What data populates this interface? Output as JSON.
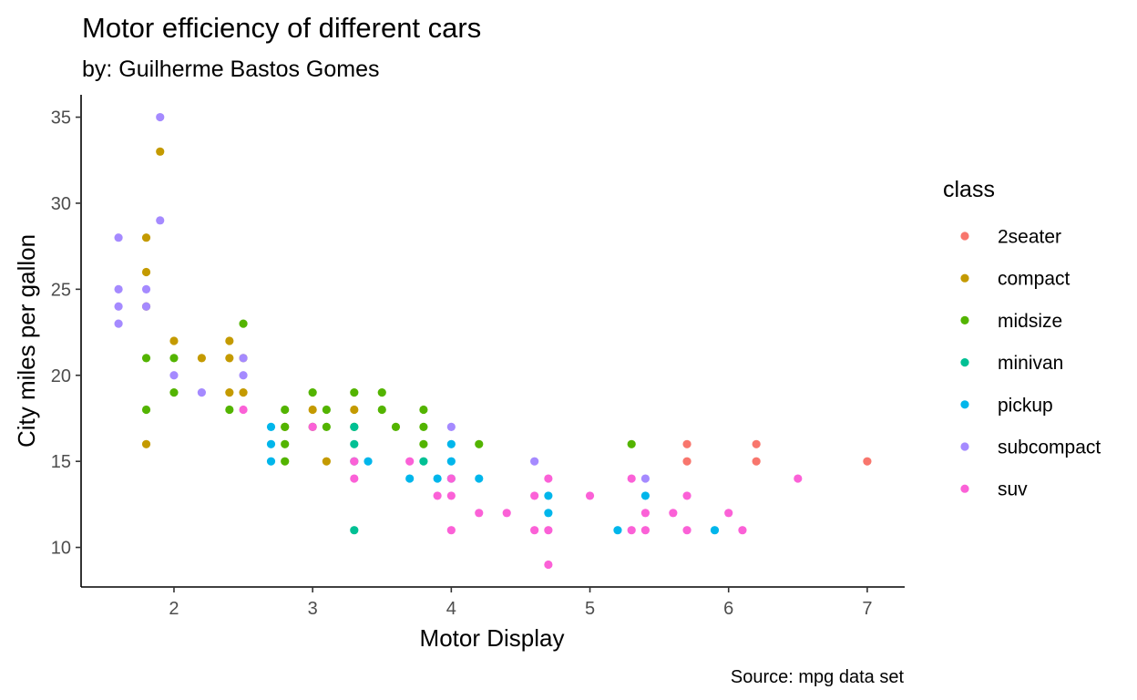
{
  "chart_data": {
    "type": "scatter",
    "title": "Motor efficiency of different cars",
    "subtitle": "by: Guilherme Bastos Gomes",
    "caption": "Source: mpg data set",
    "xlabel": "Motor Display",
    "ylabel": "City miles per gallon",
    "xlim": [
      1.33,
      7.27
    ],
    "ylim": [
      7.7,
      36.3
    ],
    "xticks": [
      2,
      3,
      4,
      5,
      6,
      7
    ],
    "yticks": [
      10,
      15,
      20,
      25,
      30,
      35
    ],
    "grid": false,
    "legend": {
      "title": "class",
      "position": "right"
    },
    "series": [
      {
        "name": "2seater",
        "color": "#F8766D",
        "points": [
          [
            5.7,
            16
          ],
          [
            5.7,
            15
          ],
          [
            6.2,
            16
          ],
          [
            6.2,
            15
          ],
          [
            7.0,
            15
          ]
        ]
      },
      {
        "name": "compact",
        "color": "#C49A00",
        "points": [
          [
            1.8,
            28
          ],
          [
            1.8,
            26
          ],
          [
            1.8,
            24
          ],
          [
            1.8,
            16
          ],
          [
            1.9,
            33
          ],
          [
            2.0,
            22
          ],
          [
            2.2,
            21
          ],
          [
            2.4,
            22
          ],
          [
            2.4,
            21
          ],
          [
            2.4,
            19
          ],
          [
            2.5,
            21
          ],
          [
            2.5,
            19
          ],
          [
            2.8,
            17
          ],
          [
            3.0,
            18
          ],
          [
            3.1,
            15
          ],
          [
            3.3,
            18
          ]
        ]
      },
      {
        "name": "midsize",
        "color": "#53B400",
        "points": [
          [
            1.8,
            21
          ],
          [
            1.8,
            18
          ],
          [
            2.0,
            21
          ],
          [
            2.0,
            19
          ],
          [
            2.4,
            18
          ],
          [
            2.5,
            23
          ],
          [
            2.8,
            18
          ],
          [
            2.8,
            17
          ],
          [
            2.8,
            16
          ],
          [
            2.8,
            15
          ],
          [
            3.0,
            19
          ],
          [
            3.0,
            17
          ],
          [
            3.1,
            18
          ],
          [
            3.1,
            17
          ],
          [
            3.3,
            19
          ],
          [
            3.3,
            17
          ],
          [
            3.5,
            19
          ],
          [
            3.5,
            18
          ],
          [
            3.6,
            17
          ],
          [
            3.8,
            18
          ],
          [
            3.8,
            17
          ],
          [
            3.8,
            16
          ],
          [
            4.2,
            16
          ],
          [
            5.3,
            16
          ]
        ]
      },
      {
        "name": "minivan",
        "color": "#00C094",
        "points": [
          [
            3.3,
            17
          ],
          [
            3.3,
            16
          ],
          [
            3.3,
            15
          ],
          [
            3.3,
            11
          ],
          [
            3.8,
            15
          ]
        ]
      },
      {
        "name": "pickup",
        "color": "#00B6EB",
        "points": [
          [
            2.7,
            17
          ],
          [
            2.7,
            16
          ],
          [
            2.7,
            15
          ],
          [
            3.4,
            15
          ],
          [
            3.7,
            14
          ],
          [
            3.9,
            14
          ],
          [
            4.0,
            16
          ],
          [
            4.0,
            15
          ],
          [
            4.0,
            14
          ],
          [
            4.2,
            14
          ],
          [
            4.7,
            13
          ],
          [
            4.7,
            12
          ],
          [
            5.2,
            11
          ],
          [
            5.4,
            13
          ],
          [
            5.9,
            11
          ]
        ]
      },
      {
        "name": "subcompact",
        "color": "#A58AFF",
        "points": [
          [
            1.6,
            28
          ],
          [
            1.6,
            25
          ],
          [
            1.6,
            24
          ],
          [
            1.6,
            23
          ],
          [
            1.8,
            25
          ],
          [
            1.8,
            24
          ],
          [
            1.9,
            35
          ],
          [
            1.9,
            29
          ],
          [
            2.0,
            20
          ],
          [
            2.2,
            19
          ],
          [
            2.5,
            21
          ],
          [
            2.5,
            20
          ],
          [
            4.0,
            17
          ],
          [
            4.6,
            15
          ],
          [
            5.4,
            14
          ]
        ]
      },
      {
        "name": "suv",
        "color": "#FB61D7",
        "points": [
          [
            2.5,
            18
          ],
          [
            3.0,
            17
          ],
          [
            3.3,
            15
          ],
          [
            3.3,
            14
          ],
          [
            3.7,
            15
          ],
          [
            3.9,
            13
          ],
          [
            4.0,
            14
          ],
          [
            4.0,
            13
          ],
          [
            4.0,
            11
          ],
          [
            4.2,
            12
          ],
          [
            4.4,
            12
          ],
          [
            4.6,
            13
          ],
          [
            4.6,
            11
          ],
          [
            4.7,
            14
          ],
          [
            4.7,
            11
          ],
          [
            4.7,
            9
          ],
          [
            5.0,
            13
          ],
          [
            5.3,
            14
          ],
          [
            5.3,
            11
          ],
          [
            5.4,
            12
          ],
          [
            5.4,
            11
          ],
          [
            5.6,
            12
          ],
          [
            5.7,
            13
          ],
          [
            5.7,
            11
          ],
          [
            6.0,
            12
          ],
          [
            6.1,
            11
          ],
          [
            6.5,
            14
          ]
        ]
      }
    ]
  }
}
